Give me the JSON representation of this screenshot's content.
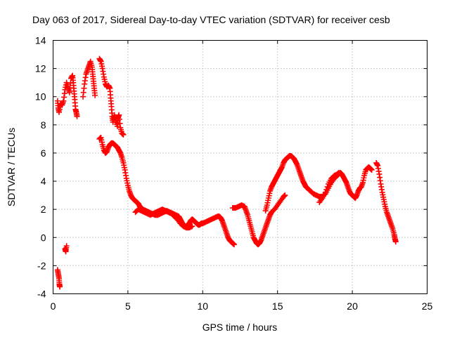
{
  "chart_data": {
    "type": "scatter",
    "title": "Day 063 of 2017, Sidereal Day-to-day VTEC variation (SDTVAR) for receiver cesb",
    "xlabel": "GPS time / hours",
    "ylabel": "SDTVAR / TECUs",
    "xlim": [
      0,
      25
    ],
    "ylim": [
      -4,
      14
    ],
    "xticks": [
      0,
      5,
      10,
      15,
      20,
      25
    ],
    "yticks": [
      -4,
      -2,
      0,
      2,
      4,
      6,
      8,
      10,
      12,
      14
    ],
    "grid": true,
    "marker": "+",
    "series": [
      {
        "name": "SDTVAR",
        "color": "#ff0000",
        "segments": [
          [
            [
              0.3,
              -2.3
            ],
            [
              0.35,
              -2.6
            ],
            [
              0.4,
              -2.9
            ],
            [
              0.42,
              -3.3
            ],
            [
              0.45,
              -3.5
            ]
          ],
          [
            [
              0.8,
              -0.8
            ],
            [
              0.85,
              -1.0
            ],
            [
              0.9,
              -0.6
            ]
          ],
          [
            [
              0.3,
              9.7
            ],
            [
              0.35,
              9.2
            ],
            [
              0.4,
              8.9
            ],
            [
              0.5,
              9.5
            ],
            [
              0.6,
              9.4
            ],
            [
              0.7,
              9.7
            ],
            [
              0.8,
              10.5
            ],
            [
              0.9,
              11.0
            ],
            [
              1.0,
              10.6
            ],
            [
              1.1,
              10.3
            ],
            [
              1.2,
              11.3
            ],
            [
              1.3,
              11.5
            ],
            [
              1.35,
              11.0
            ],
            [
              1.4,
              10.4
            ],
            [
              1.45,
              9.8
            ],
            [
              1.5,
              9.1
            ],
            [
              1.55,
              8.9
            ],
            [
              1.6,
              8.6
            ]
          ],
          [
            [
              2.0,
              10.0
            ],
            [
              2.1,
              10.9
            ],
            [
              2.2,
              11.6
            ],
            [
              2.3,
              11.9
            ],
            [
              2.4,
              12.2
            ],
            [
              2.5,
              12.5
            ],
            [
              2.6,
              12.1
            ],
            [
              2.65,
              11.6
            ],
            [
              2.7,
              11.1
            ],
            [
              2.75,
              10.6
            ],
            [
              2.8,
              10.1
            ]
          ],
          [
            [
              3.1,
              12.7
            ],
            [
              3.2,
              12.5
            ],
            [
              3.3,
              12.0
            ],
            [
              3.4,
              11.4
            ],
            [
              3.5,
              10.9
            ],
            [
              3.6,
              10.7
            ],
            [
              3.7,
              10.8
            ],
            [
              3.8,
              10.6
            ],
            [
              3.85,
              9.9
            ],
            [
              3.9,
              9.3
            ],
            [
              3.95,
              8.6
            ],
            [
              4.0,
              8.2
            ],
            [
              4.1,
              8.7
            ],
            [
              4.2,
              8.3
            ],
            [
              4.3,
              7.9
            ],
            [
              4.35,
              8.5
            ],
            [
              4.4,
              8.7
            ],
            [
              4.5,
              7.8
            ],
            [
              4.6,
              7.4
            ],
            [
              4.7,
              7.3
            ]
          ],
          [
            [
              3.1,
              7.0
            ],
            [
              3.2,
              7.1
            ],
            [
              3.3,
              6.6
            ],
            [
              3.4,
              6.2
            ],
            [
              3.5,
              6.0
            ],
            [
              3.6,
              6.1
            ],
            [
              3.7,
              6.4
            ],
            [
              3.8,
              6.6
            ],
            [
              3.9,
              6.7
            ],
            [
              4.0,
              6.7
            ],
            [
              4.1,
              6.6
            ],
            [
              4.2,
              6.5
            ],
            [
              4.3,
              6.4
            ],
            [
              4.4,
              6.2
            ],
            [
              4.5,
              6.0
            ],
            [
              4.6,
              5.7
            ],
            [
              4.7,
              5.3
            ],
            [
              4.8,
              4.8
            ],
            [
              4.9,
              4.2
            ],
            [
              5.0,
              3.7
            ],
            [
              5.1,
              3.3
            ],
            [
              5.2,
              3.0
            ],
            [
              5.3,
              2.8
            ],
            [
              5.4,
              2.7
            ],
            [
              5.5,
              2.6
            ],
            [
              5.6,
              2.5
            ],
            [
              5.7,
              2.4
            ],
            [
              5.8,
              2.2
            ],
            [
              5.9,
              2.1
            ],
            [
              6.0,
              2.0
            ],
            [
              6.2,
              1.9
            ],
            [
              6.4,
              1.8
            ],
            [
              6.6,
              1.7
            ],
            [
              6.8,
              1.6
            ],
            [
              7.0,
              1.6
            ],
            [
              7.2,
              1.7
            ],
            [
              7.4,
              1.8
            ],
            [
              7.6,
              1.9
            ],
            [
              7.8,
              1.8
            ],
            [
              8.0,
              1.7
            ],
            [
              8.2,
              1.6
            ],
            [
              8.4,
              1.5
            ],
            [
              8.5,
              1.3
            ],
            [
              8.6,
              1.1
            ],
            [
              8.7,
              0.9
            ],
            [
              8.8,
              0.8
            ],
            [
              8.9,
              0.8
            ],
            [
              9.0,
              0.9
            ],
            [
              9.1,
              1.0
            ],
            [
              9.2,
              1.2
            ],
            [
              9.3,
              1.3
            ],
            [
              9.4,
              1.2
            ],
            [
              9.5,
              1.1
            ],
            [
              9.6,
              1.0
            ],
            [
              9.7,
              0.9
            ],
            [
              9.8,
              0.9
            ],
            [
              9.9,
              1.0
            ],
            [
              10.0,
              1.0
            ],
            [
              10.2,
              1.1
            ],
            [
              10.4,
              1.2
            ],
            [
              10.6,
              1.3
            ],
            [
              10.8,
              1.4
            ],
            [
              11.0,
              1.5
            ],
            [
              11.1,
              1.5
            ],
            [
              11.2,
              1.4
            ],
            [
              11.3,
              1.2
            ],
            [
              11.4,
              0.9
            ],
            [
              11.5,
              0.6
            ],
            [
              11.6,
              0.3
            ],
            [
              11.7,
              0.0
            ],
            [
              11.8,
              -0.2
            ],
            [
              11.9,
              -0.3
            ],
            [
              12.0,
              -0.4
            ],
            [
              12.1,
              -0.5
            ]
          ],
          [
            [
              5.5,
              1.8
            ],
            [
              5.7,
              2.0
            ],
            [
              5.9,
              1.9
            ],
            [
              6.1,
              1.8
            ],
            [
              6.3,
              1.7
            ],
            [
              6.5,
              1.6
            ],
            [
              6.7,
              1.7
            ],
            [
              6.9,
              1.8
            ],
            [
              7.1,
              1.9
            ],
            [
              7.3,
              2.0
            ],
            [
              7.5,
              1.9
            ],
            [
              7.7,
              1.8
            ],
            [
              7.9,
              1.7
            ],
            [
              8.1,
              1.5
            ],
            [
              8.3,
              1.3
            ],
            [
              8.5,
              1.0
            ],
            [
              8.7,
              0.8
            ],
            [
              8.9,
              0.7
            ],
            [
              9.1,
              0.7
            ],
            [
              9.3,
              0.8
            ]
          ],
          [
            [
              12.0,
              2.1
            ],
            [
              12.2,
              2.1
            ],
            [
              12.4,
              2.2
            ],
            [
              12.6,
              2.3
            ],
            [
              12.8,
              2.2
            ],
            [
              12.9,
              1.9
            ],
            [
              13.0,
              1.6
            ],
            [
              13.1,
              1.2
            ],
            [
              13.2,
              0.8
            ],
            [
              13.3,
              0.4
            ],
            [
              13.4,
              0.0
            ],
            [
              13.5,
              -0.2
            ],
            [
              13.6,
              -0.4
            ],
            [
              13.7,
              -0.5
            ],
            [
              13.8,
              -0.4
            ],
            [
              13.9,
              -0.2
            ],
            [
              14.0,
              0.1
            ],
            [
              14.1,
              0.4
            ],
            [
              14.2,
              0.7
            ],
            [
              14.3,
              1.0
            ],
            [
              14.4,
              1.3
            ],
            [
              14.5,
              1.6
            ],
            [
              14.6,
              1.8
            ],
            [
              14.8,
              2.0
            ],
            [
              15.0,
              2.3
            ],
            [
              15.2,
              2.6
            ],
            [
              15.4,
              2.9
            ],
            [
              15.5,
              3.0
            ]
          ],
          [
            [
              14.2,
              1.9
            ],
            [
              14.3,
              2.3
            ],
            [
              14.4,
              2.8
            ],
            [
              14.5,
              3.3
            ],
            [
              14.6,
              3.6
            ],
            [
              14.7,
              3.8
            ],
            [
              14.8,
              4.0
            ],
            [
              14.9,
              4.2
            ],
            [
              15.0,
              4.4
            ],
            [
              15.1,
              4.6
            ],
            [
              15.2,
              4.8
            ],
            [
              15.3,
              5.0
            ],
            [
              15.4,
              5.3
            ],
            [
              15.5,
              5.5
            ],
            [
              15.6,
              5.6
            ],
            [
              15.7,
              5.7
            ],
            [
              15.8,
              5.8
            ],
            [
              15.9,
              5.8
            ],
            [
              16.0,
              5.7
            ],
            [
              16.1,
              5.6
            ],
            [
              16.2,
              5.4
            ],
            [
              16.3,
              5.2
            ],
            [
              16.4,
              4.9
            ],
            [
              16.5,
              4.6
            ],
            [
              16.6,
              4.3
            ],
            [
              16.7,
              4.0
            ],
            [
              16.8,
              3.8
            ],
            [
              16.9,
              3.6
            ],
            [
              17.0,
              3.5
            ],
            [
              17.2,
              3.3
            ],
            [
              17.4,
              3.1
            ],
            [
              17.6,
              3.0
            ],
            [
              17.8,
              2.9
            ],
            [
              18.0,
              2.9
            ],
            [
              18.2,
              3.1
            ],
            [
              18.4,
              3.5
            ],
            [
              18.6,
              3.9
            ],
            [
              18.8,
              4.2
            ],
            [
              19.0,
              4.4
            ],
            [
              19.2,
              4.6
            ],
            [
              19.3,
              4.5
            ],
            [
              19.4,
              4.3
            ],
            [
              19.5,
              4.1
            ],
            [
              19.6,
              3.9
            ],
            [
              19.7,
              3.6
            ],
            [
              19.8,
              3.3
            ],
            [
              19.9,
              3.1
            ],
            [
              20.0,
              3.0
            ],
            [
              20.1,
              2.9
            ],
            [
              20.2,
              2.8
            ],
            [
              20.3,
              3.0
            ],
            [
              20.4,
              3.3
            ],
            [
              20.5,
              3.5
            ],
            [
              20.6,
              3.6
            ],
            [
              20.7,
              3.9
            ],
            [
              20.8,
              4.4
            ],
            [
              20.9,
              4.8
            ],
            [
              21.0,
              4.9
            ],
            [
              21.1,
              5.0
            ],
            [
              21.2,
              4.9
            ],
            [
              21.3,
              4.8
            ]
          ],
          [
            [
              17.8,
              2.5
            ],
            [
              18.0,
              2.8
            ],
            [
              18.2,
              3.2
            ],
            [
              18.4,
              3.8
            ],
            [
              18.6,
              4.2
            ],
            [
              18.8,
              4.4
            ],
            [
              19.0,
              4.5
            ],
            [
              19.1,
              4.6
            ]
          ],
          [
            [
              21.6,
              5.3
            ],
            [
              21.7,
              5.1
            ],
            [
              21.8,
              4.5
            ],
            [
              21.9,
              3.8
            ],
            [
              22.0,
              3.2
            ],
            [
              22.1,
              2.7
            ],
            [
              22.2,
              2.2
            ],
            [
              22.3,
              1.8
            ],
            [
              22.4,
              1.5
            ],
            [
              22.5,
              1.2
            ],
            [
              22.6,
              0.9
            ],
            [
              22.7,
              0.6
            ],
            [
              22.8,
              0.2
            ],
            [
              22.85,
              -0.1
            ],
            [
              22.9,
              -0.3
            ]
          ]
        ]
      }
    ]
  }
}
